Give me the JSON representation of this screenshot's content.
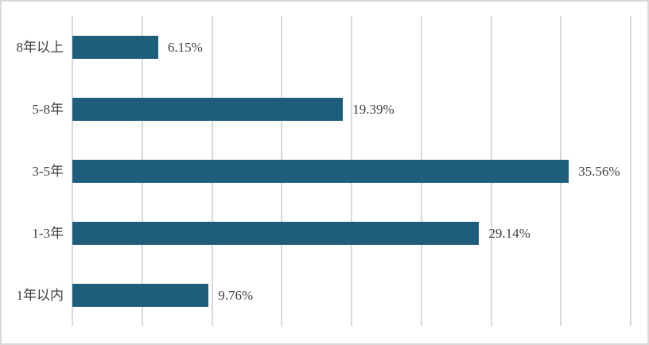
{
  "chart_data": {
    "type": "bar",
    "orientation": "horizontal",
    "title": "",
    "xlabel": "",
    "ylabel": "",
    "categories": [
      "8年以上",
      "5-8年",
      "3-5年",
      "1-3年",
      "1年以内"
    ],
    "values": [
      6.15,
      19.39,
      35.56,
      29.14,
      9.76
    ],
    "value_labels": [
      "6.15%",
      "19.39%",
      "35.56%",
      "29.14%",
      "9.76%"
    ],
    "xlim": [
      0,
      40
    ],
    "grid_step": 5,
    "grid": true,
    "legend": false,
    "axis_tick_labels_visible": false,
    "colors": {
      "bar": "#1F5D7D",
      "gridline": "#D9D9D9",
      "text": "#3F3F3F",
      "border": "#D9D9D9",
      "background": "#FFFFFF"
    }
  }
}
